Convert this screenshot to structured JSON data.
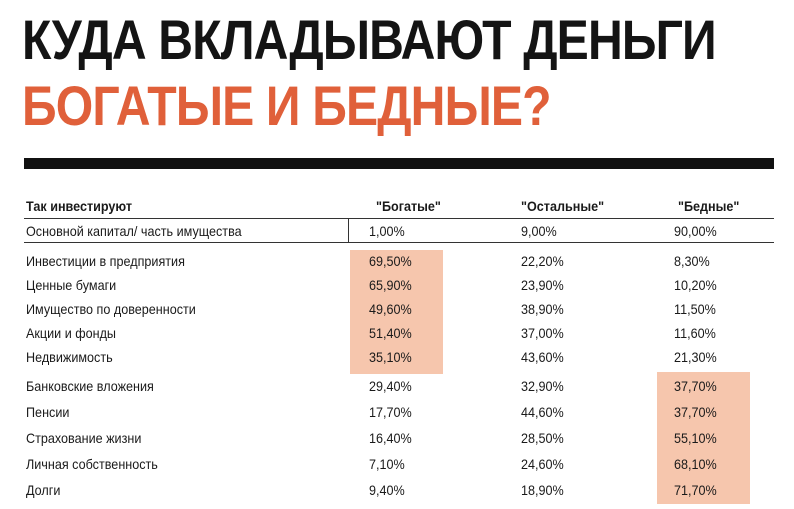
{
  "title": {
    "line1": "КУДА ВКЛАДЫВАЮТ ДЕНЬГИ",
    "line2": "БОГАТЫЕ И БЕДНЫЕ?"
  },
  "colors": {
    "accent": "#e0603a",
    "highlight": "#f6c6ad",
    "text": "#1a1a1a"
  },
  "table": {
    "headers": {
      "label": "Так инвестируют",
      "rich": "\"Богатые\"",
      "other": "\"Остальные\"",
      "poor": "\"Бедные\""
    },
    "rows": [
      {
        "label": "Основной капитал/ часть имущества",
        "rich": "1,00%",
        "other": "9,00%",
        "poor": "90,00%"
      },
      {
        "label": "Инвестиции в предприятия",
        "rich": "69,50%",
        "other": "22,20%",
        "poor": "8,30%"
      },
      {
        "label": "Ценные бумаги",
        "rich": "65,90%",
        "other": "23,90%",
        "poor": "10,20%"
      },
      {
        "label": "Имущество по доверенности",
        "rich": "49,60%",
        "other": "38,90%",
        "poor": "11,50%"
      },
      {
        "label": "Акции и фонды",
        "rich": "51,40%",
        "other": "37,00%",
        "poor": "11,60%"
      },
      {
        "label": "Недвижимость",
        "rich": "35,10%",
        "other": "43,60%",
        "poor": "21,30%"
      },
      {
        "label": "Банковские вложения",
        "rich": "29,40%",
        "other": "32,90%",
        "poor": "37,70%"
      },
      {
        "label": "Пенсии",
        "rich": "17,70%",
        "other": "44,60%",
        "poor": "37,70%"
      },
      {
        "label": "Страхование жизни",
        "rich": "16,40%",
        "other": "28,50%",
        "poor": "55,10%"
      },
      {
        "label": "Личная собственность",
        "rich": "7,10%",
        "other": "24,60%",
        "poor": "68,10%"
      },
      {
        "label": "Долги",
        "rich": "9,40%",
        "other": "18,90%",
        "poor": "71,70%"
      }
    ]
  }
}
